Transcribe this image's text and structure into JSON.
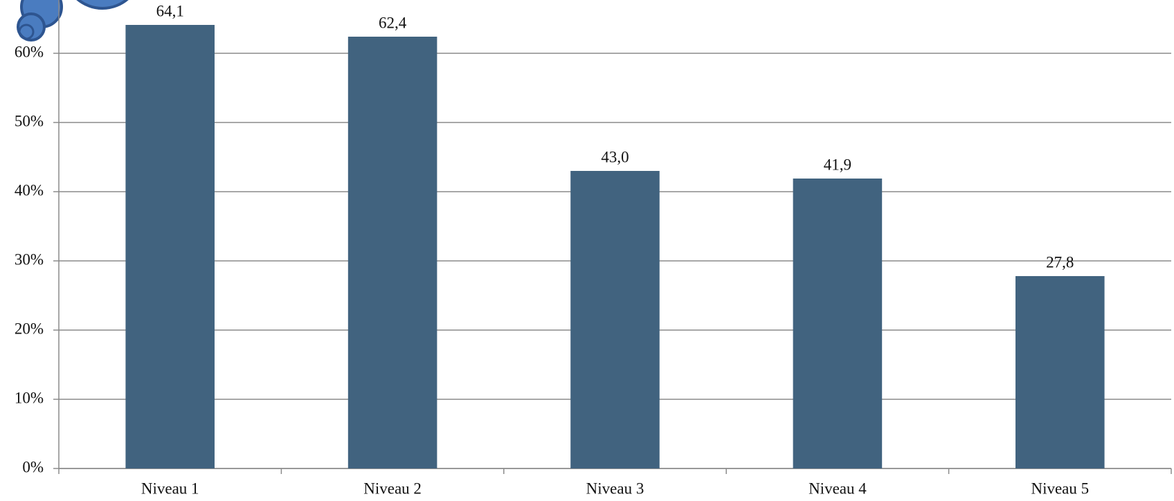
{
  "chart_data": {
    "type": "bar",
    "categories": [
      "Niveau 1",
      "Niveau 2",
      "Niveau 3",
      "Niveau 4",
      "Niveau 5"
    ],
    "values": [
      64.1,
      62.4,
      43.0,
      41.9,
      27.8
    ],
    "value_labels": [
      "64,1",
      "62,4",
      "43,0",
      "41,9",
      "27,8"
    ],
    "color": "#41637f",
    "ylim": [
      0,
      67.7
    ],
    "yticks": [
      {
        "value": 0,
        "label": "0%"
      },
      {
        "value": 10,
        "label": "10%"
      },
      {
        "value": 20,
        "label": "20%"
      },
      {
        "value": 30,
        "label": "30%"
      },
      {
        "value": 40,
        "label": "40%"
      },
      {
        "value": 50,
        "label": "50%"
      },
      {
        "value": 60,
        "label": "60%"
      }
    ],
    "grid": true
  }
}
